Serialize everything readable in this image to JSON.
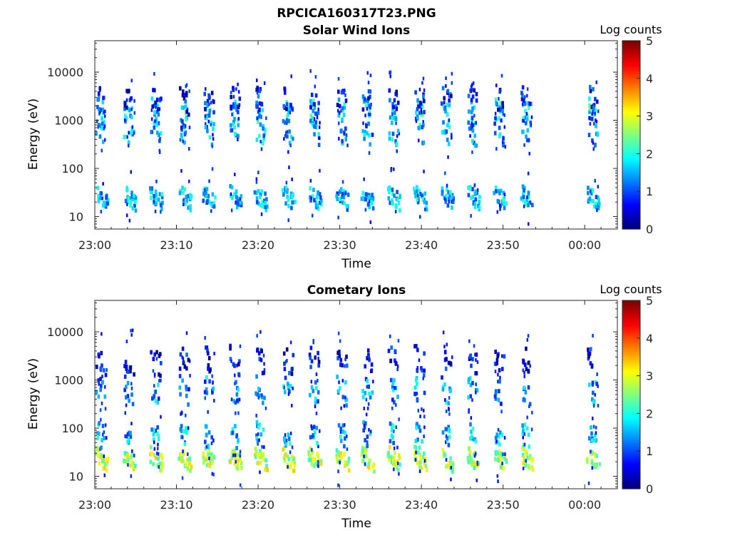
{
  "figure_title": "RPCICA160317T23.PNG",
  "chart_data": [
    {
      "type": "heatmap",
      "title": "Solar Wind Ions",
      "xlabel": "Time",
      "ylabel": "Energy (eV)",
      "x_ticks": [
        "23:00",
        "23:10",
        "23:20",
        "23:30",
        "23:40",
        "23:50",
        "00:00"
      ],
      "xlim_minutes": [
        0,
        64
      ],
      "y_ticks": [
        "10",
        "100",
        "1000",
        "10000"
      ],
      "y_scale": "log",
      "ylim": [
        5.5,
        45000
      ],
      "colorbar_label": "Log counts",
      "colorbar_ticks": [
        "0",
        "1",
        "2",
        "3",
        "4",
        "5"
      ],
      "clim": [
        0,
        5
      ],
      "colormap": "jet",
      "scan_times_minutes": [
        0.4,
        3.8,
        7.1,
        10.6,
        13.6,
        16.8,
        19.9,
        23.3,
        26.5,
        29.9,
        33.0,
        36.2,
        39.4,
        42.7,
        45.9,
        49.2,
        52.5,
        60.6
      ],
      "bands": [
        {
          "energy_eV": 30,
          "log_counts": 1.6
        },
        {
          "energy_eV": 1700,
          "log_counts": 1.8
        },
        {
          "energy_eV": 700,
          "log_counts": 1.5
        },
        {
          "energy_eV": 3000,
          "log_counts": 0.8
        }
      ]
    },
    {
      "type": "heatmap",
      "title": "Cometary Ions",
      "xlabel": "Time",
      "ylabel": "Energy (eV)",
      "x_ticks": [
        "23:00",
        "23:10",
        "23:20",
        "23:30",
        "23:40",
        "23:50",
        "00:00"
      ],
      "xlim_minutes": [
        0,
        64
      ],
      "y_ticks": [
        "10",
        "100",
        "1000",
        "10000"
      ],
      "y_scale": "log",
      "ylim": [
        5.5,
        45000
      ],
      "colorbar_label": "Log counts",
      "colorbar_ticks": [
        "0",
        "1",
        "2",
        "3",
        "4",
        "5"
      ],
      "clim": [
        0,
        5
      ],
      "colormap": "jet",
      "scan_times_minutes": [
        0.4,
        3.8,
        7.1,
        10.6,
        13.6,
        16.8,
        19.9,
        23.3,
        26.5,
        29.9,
        33.0,
        36.2,
        39.4,
        42.7,
        45.9,
        49.2,
        52.5,
        60.6
      ],
      "bands": [
        {
          "energy_eV": 28,
          "log_counts": 2.8
        },
        {
          "energy_eV": 80,
          "log_counts": 1.6
        },
        {
          "energy_eV": 700,
          "log_counts": 1.4
        },
        {
          "energy_eV": 3000,
          "log_counts": 0.6
        }
      ]
    }
  ]
}
